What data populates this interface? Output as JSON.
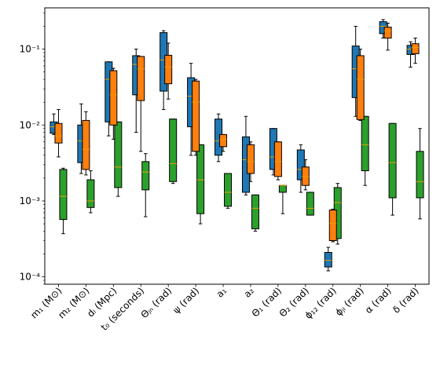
{
  "chart_data": {
    "type": "box",
    "y_scale": "log",
    "ylim": [
      8e-05,
      0.35
    ],
    "y_ticks": [
      {
        "value": 0.0001,
        "label": "10⁻⁴"
      },
      {
        "value": 0.001,
        "label": "10⁻³"
      },
      {
        "value": 0.01,
        "label": "10⁻²"
      },
      {
        "value": 0.1,
        "label": "10⁻¹"
      }
    ],
    "grid": false,
    "legend": "none",
    "categories": [
      "m₁ (M⊙)",
      "m₂ (M⊙)",
      "dₗ (Mpc)",
      "t₀ (seconds)",
      "Θⱼₙ (rad)",
      "ψ (rad)",
      "a₁",
      "a₂",
      "Θ₁ (rad)",
      "Θ₂ (rad)",
      "ϕ₁₂ (rad)",
      "ϕⱼₗ (rad)",
      "α (rad)",
      "δ (rad)"
    ],
    "series": [
      {
        "color": "#1f77b4",
        "boxes": [
          {
            "whislo": 0.0075,
            "q1": 0.0078,
            "med": 0.0095,
            "q3": 0.011,
            "whishi": 0.014
          },
          {
            "whislo": 0.0023,
            "q1": 0.0032,
            "med": 0.0062,
            "q3": 0.01,
            "whishi": 0.019
          },
          {
            "whislo": 0.0072,
            "q1": 0.011,
            "med": 0.04,
            "q3": 0.068,
            "whishi": 0.068
          },
          {
            "whislo": 0.008,
            "q1": 0.025,
            "med": 0.063,
            "q3": 0.082,
            "whishi": 0.1
          },
          {
            "whislo": 0.016,
            "q1": 0.028,
            "med": 0.072,
            "q3": 0.165,
            "whishi": 0.175
          },
          {
            "whislo": 0.004,
            "q1": 0.0095,
            "med": 0.024,
            "q3": 0.042,
            "whishi": 0.065
          },
          {
            "whislo": 0.0033,
            "q1": 0.004,
            "med": 0.0062,
            "q3": 0.012,
            "whishi": 0.014
          },
          {
            "whislo": 0.0012,
            "q1": 0.0013,
            "med": 0.0035,
            "q3": 0.007,
            "whishi": 0.013
          },
          {
            "whislo": 0.0022,
            "q1": 0.0026,
            "med": 0.0038,
            "q3": 0.009,
            "whishi": 0.009
          },
          {
            "whislo": 0.0013,
            "q1": 0.0019,
            "med": 0.0026,
            "q3": 0.0047,
            "whishi": 0.0055
          },
          {
            "whislo": 0.00012,
            "q1": 0.000135,
            "med": 0.000165,
            "q3": 0.00021,
            "whishi": 0.000245
          },
          {
            "whislo": 0.013,
            "q1": 0.023,
            "med": 0.055,
            "q3": 0.11,
            "whishi": 0.2
          },
          {
            "whislo": 0.14,
            "q1": 0.16,
            "med": 0.2,
            "q3": 0.23,
            "whishi": 0.245
          },
          {
            "whislo": 0.058,
            "q1": 0.085,
            "med": 0.1,
            "q3": 0.112,
            "whishi": 0.125
          }
        ]
      },
      {
        "color": "#ff7f0e",
        "boxes": [
          {
            "whislo": 0.0038,
            "q1": 0.0058,
            "med": 0.0072,
            "q3": 0.0105,
            "whishi": 0.016
          },
          {
            "whislo": 0.0022,
            "q1": 0.0026,
            "med": 0.0048,
            "q3": 0.0115,
            "whishi": 0.015
          },
          {
            "whislo": 0.0065,
            "q1": 0.01,
            "med": 0.025,
            "q3": 0.052,
            "whishi": 0.056
          },
          {
            "whislo": 0.0045,
            "q1": 0.021,
            "med": 0.055,
            "q3": 0.08,
            "whishi": 0.08
          },
          {
            "whislo": 0.022,
            "q1": 0.035,
            "med": 0.058,
            "q3": 0.083,
            "whishi": 0.12
          },
          {
            "whislo": 0.004,
            "q1": 0.0045,
            "med": 0.02,
            "q3": 0.038,
            "whishi": 0.04
          },
          {
            "whislo": 0.0045,
            "q1": 0.0052,
            "med": 0.0065,
            "q3": 0.0075,
            "whishi": 0.0075
          },
          {
            "whislo": 0.0018,
            "q1": 0.0023,
            "med": 0.0033,
            "q3": 0.0055,
            "whishi": 0.006
          },
          {
            "whislo": 0.0019,
            "q1": 0.0021,
            "med": 0.0033,
            "q3": 0.006,
            "whishi": 0.006
          },
          {
            "whislo": 0.0014,
            "q1": 0.0016,
            "med": 0.0021,
            "q3": 0.0028,
            "whishi": 0.0035
          },
          {
            "whislo": 0.00029,
            "q1": 0.0003,
            "med": 0.00051,
            "q3": 0.00076,
            "whishi": 0.00078
          },
          {
            "whislo": 0.0115,
            "q1": 0.0118,
            "med": 0.04,
            "q3": 0.082,
            "whishi": 0.1
          },
          {
            "whislo": 0.097,
            "q1": 0.14,
            "med": 0.175,
            "q3": 0.195,
            "whishi": 0.22
          },
          {
            "whislo": 0.065,
            "q1": 0.087,
            "med": 0.105,
            "q3": 0.118,
            "whishi": 0.14
          }
        ]
      },
      {
        "color": "#2ca02c",
        "boxes": [
          {
            "whislo": 0.00037,
            "q1": 0.00057,
            "med": 0.00115,
            "q3": 0.0026,
            "whishi": 0.0027
          },
          {
            "whislo": 0.0007,
            "q1": 0.00082,
            "med": 0.001,
            "q3": 0.0019,
            "whishi": 0.0025
          },
          {
            "whislo": 0.00115,
            "q1": 0.0015,
            "med": 0.0028,
            "q3": 0.011,
            "whishi": 0.011
          },
          {
            "whislo": 0.00062,
            "q1": 0.0014,
            "med": 0.0024,
            "q3": 0.0033,
            "whishi": 0.0042
          },
          {
            "whislo": 0.0017,
            "q1": 0.0018,
            "med": 0.0031,
            "q3": 0.012,
            "whishi": 0.012
          },
          {
            "whislo": 0.0005,
            "q1": 0.00068,
            "med": 0.0019,
            "q3": 0.0055,
            "whishi": 0.0055
          },
          {
            "whislo": 0.0008,
            "q1": 0.00085,
            "med": 0.0013,
            "q3": 0.0023,
            "whishi": 0.0023
          },
          {
            "whislo": 0.0004,
            "q1": 0.00043,
            "med": 0.0008,
            "q3": 0.0012,
            "whishi": 0.0012
          },
          {
            "whislo": 0.00068,
            "q1": 0.0013,
            "med": 0.0016,
            "q3": 0.0016,
            "whishi": 0.0016
          },
          {
            "whislo": 0.00065,
            "q1": 0.00065,
            "med": 0.0008,
            "q3": 0.0013,
            "whishi": 0.0013
          },
          {
            "whislo": 0.00027,
            "q1": 0.00032,
            "med": 0.00095,
            "q3": 0.0015,
            "whishi": 0.0017
          },
          {
            "whislo": 0.0016,
            "q1": 0.0025,
            "med": 0.0055,
            "q3": 0.013,
            "whishi": 0.013
          },
          {
            "whislo": 0.00065,
            "q1": 0.0011,
            "med": 0.0032,
            "q3": 0.0105,
            "whishi": 0.0105
          },
          {
            "whislo": 0.00058,
            "q1": 0.0011,
            "med": 0.0018,
            "q3": 0.0045,
            "whishi": 0.009
          }
        ]
      }
    ],
    "median_color": "#e69f00"
  }
}
